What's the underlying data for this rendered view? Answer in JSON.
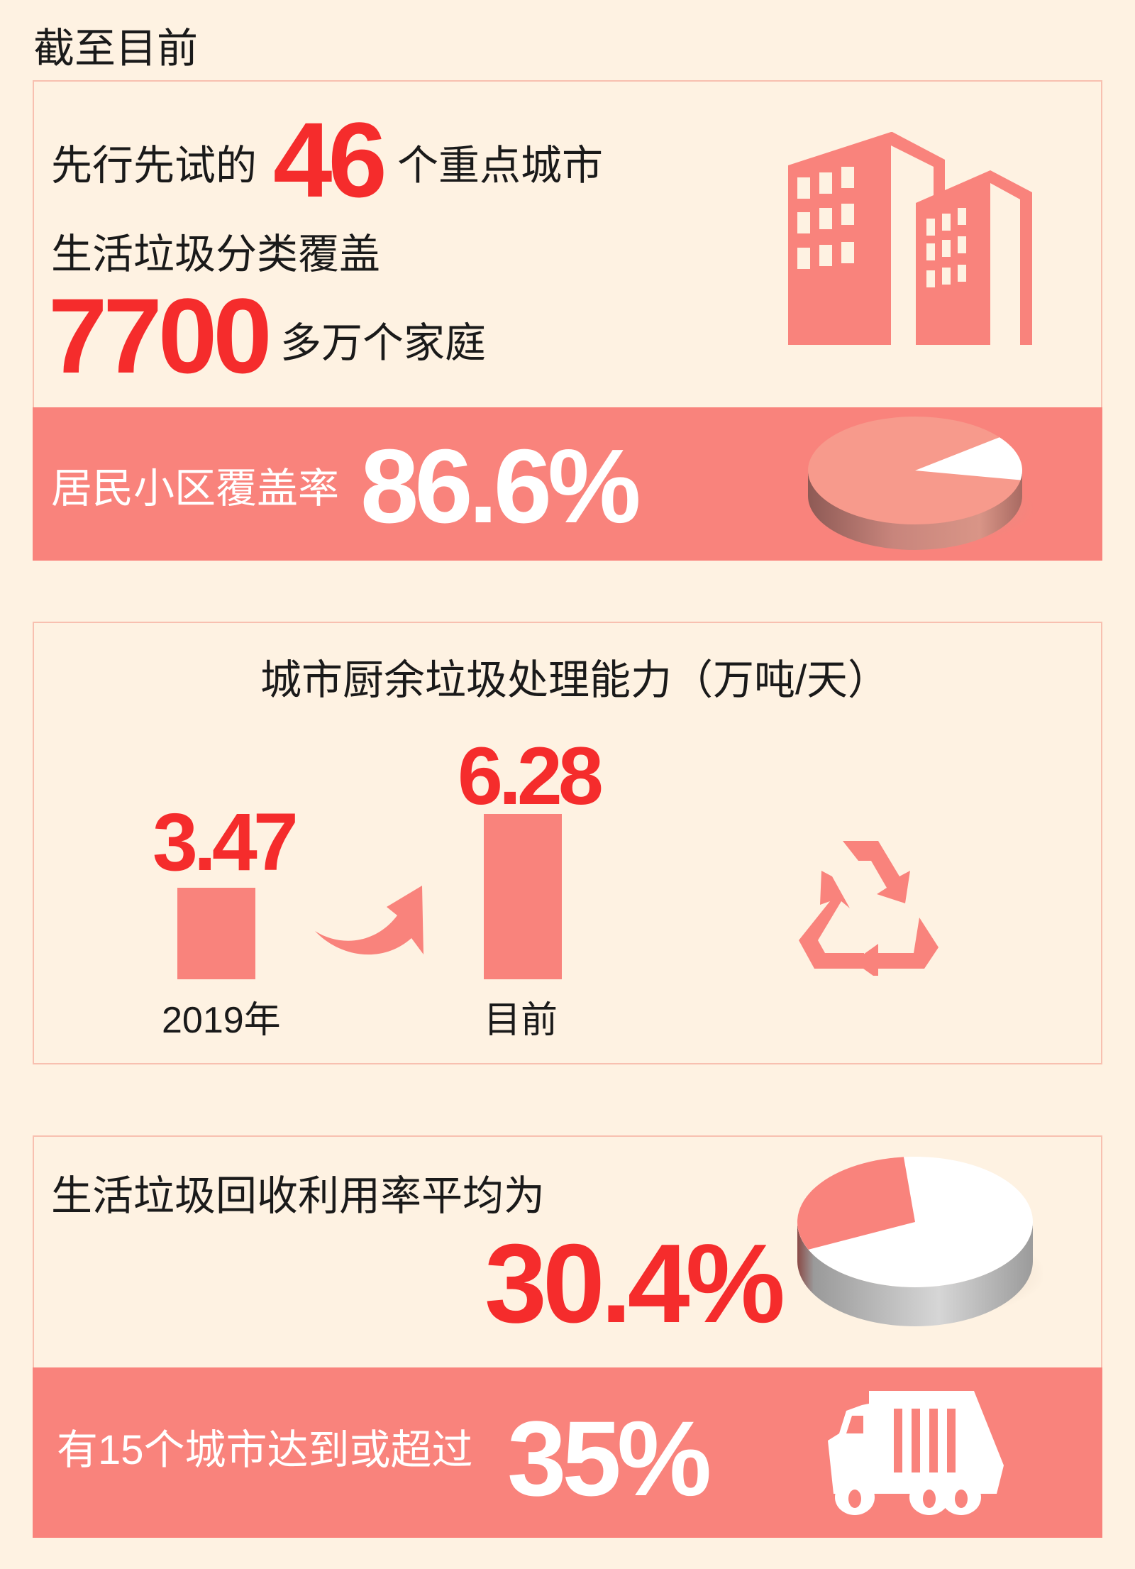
{
  "header": {
    "title": "截至目前"
  },
  "section1": {
    "line1_prefix": "先行先试的",
    "cities_count": "46",
    "line1_suffix": "个重点城市",
    "line2": "生活垃圾分类覆盖",
    "households": "7700",
    "households_suffix": "多万个家庭",
    "coverage_label": "居民小区覆盖率",
    "coverage_value": "86.6%",
    "coverage_percent": 86.6,
    "icon": "buildings-icon"
  },
  "section2": {
    "title": "城市厨余垃圾处理能力（万吨/天）",
    "bars": [
      {
        "label": "2019年",
        "value_text": "3.47",
        "value": 3.47
      },
      {
        "label": "目前",
        "value_text": "6.28",
        "value": 6.28
      }
    ],
    "icons": [
      "growth-arrow-icon",
      "recycle-icon"
    ]
  },
  "section3": {
    "line1": "生活垃圾回收利用率平均为",
    "recycle_value": "30.4%",
    "recycle_percent": 30.4,
    "band_label": "有15个城市达到或超过",
    "band_value": "35%",
    "icon": "garbage-truck-icon"
  },
  "colors": {
    "background": "#fef2e2",
    "accent": "#f9837c",
    "highlight": "#f52c2c",
    "border": "#f8c0b0"
  }
}
